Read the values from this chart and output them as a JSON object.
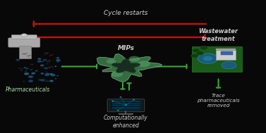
{
  "background_color": "#080808",
  "title": "Cycle restarts",
  "title_color": "#d0d0d0",
  "title_fontsize": 6.5,
  "mips_label": "MIPs",
  "mips_label_color": "#cccccc",
  "mips_label_fontsize": 6.5,
  "pharmaceuticals_label": "Pharmaceuticals",
  "pharma_label_color": "#aaddaa",
  "pharma_label_fontsize": 5.5,
  "wastewater_label": "Wastewater\ntreatment",
  "wastewater_label_color": "#cccccc",
  "wastewater_label_fontsize": 6.0,
  "computationally_label": "Computationally\nenhanced",
  "computationally_label_color": "#cccccc",
  "computationally_label_fontsize": 5.5,
  "trace_label": "Trace\npharmaceuticals\nremoved",
  "trace_label_color": "#cccccc",
  "trace_label_fontsize": 5.2,
  "red_arrow_color": "#991111",
  "green_arrow_color": "#226622",
  "bright_green": "#33aa33",
  "bright_red": "#bb1111"
}
